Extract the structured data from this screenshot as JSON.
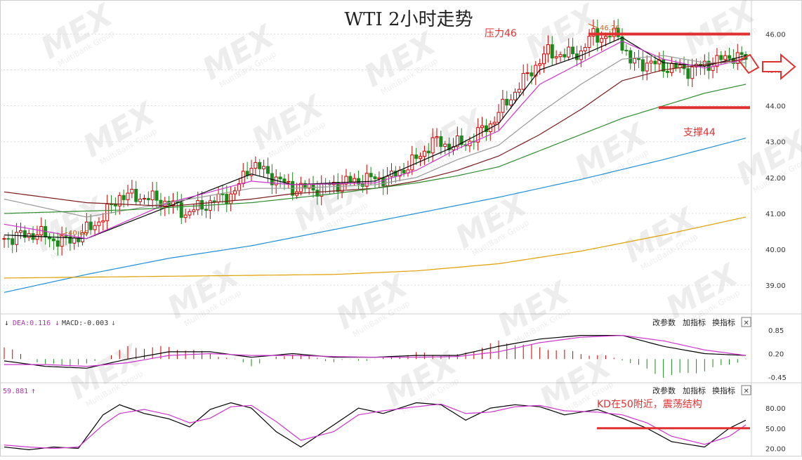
{
  "chart_data": [
    {
      "type": "candlestick",
      "title": "WTI 2小时走势",
      "ylim": [
        38.2,
        46.4
      ],
      "y_ticks": [
        "46.00",
        "45.00",
        "44.00",
        "43.00",
        "42.00",
        "41.00",
        "40.00",
        "39.00"
      ],
      "y_tick_values": [
        46,
        45,
        44,
        43,
        42,
        41,
        40,
        39
      ],
      "annotations": {
        "resistance": {
          "label": "压力46",
          "value": 46.0
        },
        "support": {
          "label": "支撑44",
          "value": 43.95
        },
        "high_marker": {
          "label": "46.26",
          "value": 46.26
        },
        "low_marker": {
          "label": "40.06",
          "value": 40.06
        }
      },
      "close_anchors": [
        [
          0,
          40.3
        ],
        [
          8,
          40.45
        ],
        [
          14,
          40.2
        ],
        [
          18,
          40.35
        ],
        [
          24,
          40.9
        ],
        [
          28,
          41.5
        ],
        [
          34,
          41.45
        ],
        [
          40,
          41.3
        ],
        [
          44,
          41.0
        ],
        [
          50,
          41.3
        ],
        [
          56,
          41.6
        ],
        [
          60,
          42.4
        ],
        [
          64,
          42.1
        ],
        [
          70,
          41.7
        ],
        [
          76,
          41.7
        ],
        [
          82,
          41.85
        ],
        [
          88,
          41.95
        ],
        [
          94,
          42.0
        ],
        [
          100,
          42.5
        ],
        [
          104,
          43.0
        ],
        [
          108,
          42.9
        ],
        [
          112,
          42.95
        ],
        [
          118,
          43.5
        ],
        [
          124,
          44.4
        ],
        [
          128,
          45.0
        ],
        [
          132,
          45.5
        ],
        [
          136,
          45.4
        ],
        [
          140,
          45.5
        ],
        [
          143,
          46.0
        ],
        [
          146,
          45.9
        ],
        [
          149,
          46.0
        ],
        [
          152,
          45.2
        ],
        [
          156,
          45.2
        ],
        [
          160,
          45.1
        ],
        [
          166,
          45.0
        ],
        [
          172,
          45.2
        ],
        [
          177,
          45.4
        ],
        [
          180,
          45.3
        ]
      ],
      "moving_averages": [
        {
          "color": "#000000",
          "points": [
            [
              0,
              40.4
            ],
            [
              20,
              40.3
            ],
            [
              40,
              41.2
            ],
            [
              60,
              42.1
            ],
            [
              70,
              41.8
            ],
            [
              90,
              41.9
            ],
            [
              100,
              42.4
            ],
            [
              110,
              42.9
            ],
            [
              120,
              43.5
            ],
            [
              130,
              45.0
            ],
            [
              140,
              45.4
            ],
            [
              150,
              45.9
            ],
            [
              160,
              45.2
            ],
            [
              170,
              45.1
            ],
            [
              180,
              45.4
            ]
          ]
        },
        {
          "color": "#cc33cc",
          "points": [
            [
              0,
              40.7
            ],
            [
              20,
              40.3
            ],
            [
              40,
              41.3
            ],
            [
              60,
              41.9
            ],
            [
              70,
              41.8
            ],
            [
              90,
              41.85
            ],
            [
              100,
              42.2
            ],
            [
              110,
              42.8
            ],
            [
              120,
              43.3
            ],
            [
              130,
              44.6
            ],
            [
              140,
              45.2
            ],
            [
              150,
              45.8
            ],
            [
              160,
              45.3
            ],
            [
              170,
              45.05
            ],
            [
              180,
              45.3
            ]
          ]
        },
        {
          "color": "#999999",
          "points": [
            [
              0,
              41.4
            ],
            [
              20,
              40.9
            ],
            [
              40,
              41.3
            ],
            [
              60,
              41.7
            ],
            [
              70,
              41.7
            ],
            [
              90,
              41.8
            ],
            [
              100,
              42.0
            ],
            [
              110,
              42.5
            ],
            [
              120,
              42.9
            ],
            [
              130,
              43.8
            ],
            [
              140,
              44.6
            ],
            [
              150,
              45.3
            ],
            [
              160,
              45.4
            ],
            [
              170,
              45.2
            ],
            [
              180,
              45.2
            ]
          ]
        },
        {
          "color": "#7a1a1a",
          "points": [
            [
              0,
              41.6
            ],
            [
              20,
              41.3
            ],
            [
              40,
              41.2
            ],
            [
              60,
              41.4
            ],
            [
              70,
              41.55
            ],
            [
              90,
              41.7
            ],
            [
              100,
              41.9
            ],
            [
              110,
              42.2
            ],
            [
              120,
              42.6
            ],
            [
              130,
              43.2
            ],
            [
              140,
              43.9
            ],
            [
              150,
              44.7
            ],
            [
              160,
              45.0
            ],
            [
              170,
              45.15
            ],
            [
              180,
              45.3
            ]
          ]
        },
        {
          "color": "#2e8b2e",
          "points": [
            [
              0,
              41.0
            ],
            [
              30,
              41.1
            ],
            [
              60,
              41.3
            ],
            [
              80,
              41.55
            ],
            [
              100,
              41.85
            ],
            [
              110,
              42.05
            ],
            [
              120,
              42.3
            ],
            [
              130,
              42.75
            ],
            [
              140,
              43.2
            ],
            [
              150,
              43.65
            ],
            [
              160,
              44.0
            ],
            [
              170,
              44.35
            ],
            [
              180,
              44.6
            ]
          ]
        },
        {
          "color": "#1f8fd6",
          "points": [
            [
              0,
              38.8
            ],
            [
              20,
              39.3
            ],
            [
              40,
              39.75
            ],
            [
              60,
              40.1
            ],
            [
              80,
              40.55
            ],
            [
              100,
              41.0
            ],
            [
              120,
              41.45
            ],
            [
              140,
              41.95
            ],
            [
              160,
              42.5
            ],
            [
              170,
              42.8
            ],
            [
              180,
              43.1
            ]
          ]
        },
        {
          "color": "#e0a000",
          "points": [
            [
              0,
              39.2
            ],
            [
              40,
              39.25
            ],
            [
              80,
              39.3
            ],
            [
              100,
              39.4
            ],
            [
              120,
              39.6
            ],
            [
              140,
              39.95
            ],
            [
              160,
              40.4
            ],
            [
              180,
              40.9
            ]
          ]
        }
      ]
    },
    {
      "type": "macd",
      "label_dea": "DEA:0.116",
      "label_macd": "MACD:-0.003",
      "ylim": [
        -0.6,
        1.0
      ],
      "y_ticks": [
        "0.85",
        "0.20",
        "-0.45"
      ],
      "y_tick_values": [
        0.85,
        0.2,
        -0.45
      ],
      "dif_anchors": [
        [
          0,
          0.0
        ],
        [
          10,
          -0.15
        ],
        [
          20,
          -0.2
        ],
        [
          30,
          0.05
        ],
        [
          40,
          0.25
        ],
        [
          50,
          0.25
        ],
        [
          60,
          0.1
        ],
        [
          70,
          0.2
        ],
        [
          80,
          0.1
        ],
        [
          90,
          0.1
        ],
        [
          100,
          0.15
        ],
        [
          110,
          0.15
        ],
        [
          120,
          0.4
        ],
        [
          130,
          0.6
        ],
        [
          140,
          0.7
        ],
        [
          150,
          0.7
        ],
        [
          160,
          0.4
        ],
        [
          170,
          0.2
        ],
        [
          180,
          0.15
        ]
      ],
      "dea_anchors": [
        [
          0,
          -0.1
        ],
        [
          10,
          -0.1
        ],
        [
          20,
          -0.15
        ],
        [
          30,
          -0.05
        ],
        [
          40,
          0.15
        ],
        [
          50,
          0.2
        ],
        [
          60,
          0.15
        ],
        [
          70,
          0.15
        ],
        [
          80,
          0.12
        ],
        [
          90,
          0.1
        ],
        [
          100,
          0.1
        ],
        [
          110,
          0.12
        ],
        [
          120,
          0.25
        ],
        [
          130,
          0.5
        ],
        [
          140,
          0.65
        ],
        [
          150,
          0.7
        ],
        [
          160,
          0.55
        ],
        [
          170,
          0.3
        ],
        [
          180,
          0.15
        ]
      ]
    },
    {
      "type": "kd",
      "label_value": "59.881",
      "ylim": [
        10,
        100
      ],
      "y_ticks": [
        "80.00",
        "50.00",
        "20.00"
      ],
      "y_tick_values": [
        80,
        50,
        20
      ],
      "annotation": {
        "label": "KD在50附近，震荡结构",
        "value": 50
      },
      "k_anchors": [
        [
          0,
          22
        ],
        [
          6,
          18
        ],
        [
          12,
          22
        ],
        [
          18,
          20
        ],
        [
          24,
          70
        ],
        [
          28,
          85
        ],
        [
          34,
          72
        ],
        [
          40,
          64
        ],
        [
          45,
          52
        ],
        [
          50,
          78
        ],
        [
          55,
          88
        ],
        [
          60,
          80
        ],
        [
          66,
          45
        ],
        [
          72,
          22
        ],
        [
          80,
          55
        ],
        [
          86,
          80
        ],
        [
          92,
          72
        ],
        [
          100,
          88
        ],
        [
          106,
          85
        ],
        [
          112,
          62
        ],
        [
          118,
          80
        ],
        [
          124,
          85
        ],
        [
          130,
          82
        ],
        [
          136,
          70
        ],
        [
          144,
          78
        ],
        [
          150,
          65
        ],
        [
          156,
          50
        ],
        [
          162,
          30
        ],
        [
          170,
          22
        ],
        [
          176,
          50
        ],
        [
          180,
          62
        ]
      ],
      "d_anchors": [
        [
          0,
          25
        ],
        [
          6,
          22
        ],
        [
          12,
          20
        ],
        [
          18,
          22
        ],
        [
          24,
          55
        ],
        [
          28,
          72
        ],
        [
          34,
          78
        ],
        [
          40,
          70
        ],
        [
          45,
          58
        ],
        [
          50,
          65
        ],
        [
          55,
          82
        ],
        [
          60,
          84
        ],
        [
          66,
          60
        ],
        [
          72,
          32
        ],
        [
          80,
          45
        ],
        [
          86,
          70
        ],
        [
          92,
          76
        ],
        [
          100,
          82
        ],
        [
          106,
          86
        ],
        [
          112,
          72
        ],
        [
          118,
          74
        ],
        [
          124,
          82
        ],
        [
          130,
          84
        ],
        [
          136,
          76
        ],
        [
          144,
          74
        ],
        [
          150,
          70
        ],
        [
          156,
          58
        ],
        [
          162,
          38
        ],
        [
          170,
          26
        ],
        [
          176,
          38
        ],
        [
          180,
          55
        ]
      ]
    }
  ],
  "toolbar": {
    "params": "改参数",
    "add": "加指标",
    "swap": "换指标",
    "close": "✕"
  },
  "watermark": {
    "logo": "MEX",
    "sub": "MultiBank Group"
  },
  "colors": {
    "up": "#cc0000",
    "down": "#1a8a1a",
    "accent": "#e03030",
    "grid": "#dddddd"
  }
}
